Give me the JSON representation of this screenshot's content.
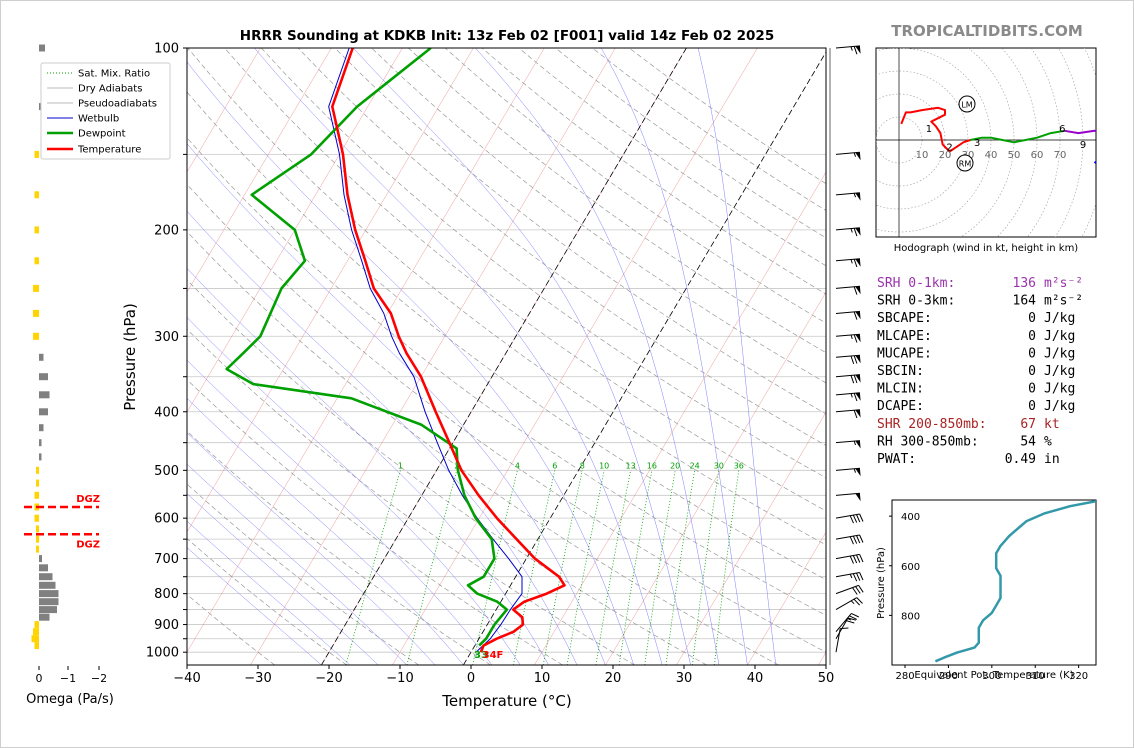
{
  "watermark": "TROPICALTIDBITS.COM",
  "chart_data": [
    {
      "type": "line",
      "subtype": "skew-t sounding",
      "title": "HRRR Sounding at KDKB Init: 13z Feb 02 [F001] valid 14z Feb 02 2025",
      "xlabel": "Temperature (°C)",
      "ylabel": "Pressure (hPa)",
      "xlim": [
        -40,
        50
      ],
      "ylim": [
        1050,
        100
      ],
      "y_scale": "log",
      "x_ticks": [
        "−40",
        "−30",
        "−20",
        "−10",
        "0",
        "10",
        "20",
        "30",
        "40",
        "50"
      ],
      "y_ticks": [
        "100",
        "200",
        "300",
        "400",
        "500",
        "600",
        "700",
        "800",
        "900",
        "1000"
      ],
      "legend_position": "top-left",
      "legend": [
        "Sat. Mix. Ratio",
        "Dry Adiabats",
        "Pseudoadiabats",
        "Wetbulb",
        "Dewpoint",
        "Temperature"
      ],
      "mixing_ratio_labels": [
        "1",
        "2",
        "4",
        "6",
        "8",
        "10",
        "13",
        "16",
        "20",
        "24",
        "30",
        "36"
      ],
      "surface_labels": {
        "dewpoint": "33",
        "temperature": "34F"
      },
      "series": [
        {
          "name": "Temperature",
          "color": "#ff0000",
          "points": [
            [
              1000,
              1.4
            ],
            [
              975,
              1.2
            ],
            [
              950,
              2.5
            ],
            [
              925,
              4.3
            ],
            [
              900,
              5.0
            ],
            [
              875,
              4.3
            ],
            [
              850,
              2.4
            ],
            [
              825,
              3.3
            ],
            [
              800,
              5.8
            ],
            [
              775,
              7.6
            ],
            [
              750,
              6.1
            ],
            [
              700,
              1.2
            ],
            [
              650,
              -3.0
            ],
            [
              600,
              -7.5
            ],
            [
              550,
              -12.0
            ],
            [
              500,
              -16.5
            ],
            [
              450,
              -20.5
            ],
            [
              400,
              -25.0
            ],
            [
              350,
              -30.0
            ],
            [
              320,
              -34.0
            ],
            [
              300,
              -36.5
            ],
            [
              275,
              -39.5
            ],
            [
              250,
              -44.0
            ],
            [
              225,
              -47.5
            ],
            [
              200,
              -51.5
            ],
            [
              175,
              -55.5
            ],
            [
              150,
              -59.5
            ],
            [
              125,
              -65.0
            ],
            [
              100,
              -67.0
            ]
          ]
        },
        {
          "name": "Wetbulb",
          "color": "#0000cc",
          "points": [
            [
              1000,
              0.7
            ],
            [
              950,
              1.6
            ],
            [
              900,
              1.9
            ],
            [
              850,
              2.0
            ],
            [
              800,
              2.3
            ],
            [
              750,
              0.9
            ],
            [
              700,
              -2.5
            ],
            [
              650,
              -6.3
            ],
            [
              600,
              -10.3
            ],
            [
              550,
              -14.3
            ],
            [
              500,
              -18.3
            ],
            [
              450,
              -22.2
            ],
            [
              400,
              -26.5
            ],
            [
              350,
              -31.0
            ],
            [
              320,
              -35.0
            ],
            [
              300,
              -37.5
            ],
            [
              275,
              -40.5
            ],
            [
              250,
              -44.5
            ],
            [
              225,
              -48.0
            ],
            [
              200,
              -52.0
            ],
            [
              175,
              -56.0
            ],
            [
              150,
              -60.0
            ],
            [
              125,
              -65.5
            ],
            [
              100,
              -67.5
            ]
          ]
        },
        {
          "name": "Dewpoint",
          "color": "#00a000",
          "points": [
            [
              975,
              0.6
            ],
            [
              950,
              1.0
            ],
            [
              900,
              1.0
            ],
            [
              850,
              1.5
            ],
            [
              825,
              -0.5
            ],
            [
              800,
              -4.0
            ],
            [
              775,
              -6.0
            ],
            [
              750,
              -4.5
            ],
            [
              700,
              -4.5
            ],
            [
              650,
              -6.5
            ],
            [
              600,
              -10.5
            ],
            [
              550,
              -14.0
            ],
            [
              500,
              -17.0
            ],
            [
              460,
              -19.0
            ],
            [
              420,
              -26.0
            ],
            [
              380,
              -38.0
            ],
            [
              360,
              -53.0
            ],
            [
              340,
              -58.0
            ],
            [
              320,
              -57.0
            ],
            [
              300,
              -56.0
            ],
            [
              250,
              -57.0
            ],
            [
              225,
              -56.0
            ],
            [
              200,
              -60.0
            ],
            [
              175,
              -69.0
            ],
            [
              150,
              -64.0
            ],
            [
              125,
              -61.5
            ],
            [
              100,
              -56.0
            ]
          ]
        }
      ]
    },
    {
      "type": "bar",
      "title": "",
      "xlabel": "Omega (Pa/s)",
      "x_ticks": [
        "0",
        "−1",
        "−2"
      ],
      "dgz_labels": [
        "DGZ",
        "DGZ"
      ],
      "dgz_pressures": [
        575,
        638
      ],
      "series": [
        {
          "name": "",
          "color": "#ffd400",
          "pressures": [
            150,
            175,
            200,
            225,
            250,
            275,
            300,
            500,
            525,
            550,
            575,
            600,
            625,
            650,
            675,
            900,
            925,
            950,
            975
          ],
          "values": [
            0.15,
            0.15,
            0.15,
            0.15,
            0.2,
            0.2,
            0.2,
            0.1,
            0.1,
            0.15,
            0.15,
            0.15,
            0.1,
            0.1,
            0.1,
            0.15,
            0.2,
            0.25,
            0.15
          ]
        },
        {
          "name": "",
          "color": "#808080",
          "pressures": [
            100,
            125,
            325,
            350,
            375,
            400,
            425,
            450,
            475,
            700,
            725,
            750,
            775,
            800,
            825,
            850,
            875
          ],
          "values": [
            -0.2,
            -0.1,
            -0.15,
            -0.3,
            -0.35,
            -0.3,
            -0.15,
            -0.05,
            -0.05,
            -0.1,
            -0.3,
            -0.45,
            -0.55,
            -0.65,
            -0.65,
            -0.6,
            -0.35
          ]
        }
      ]
    },
    {
      "type": "line",
      "title": "Hodograph (wind in kt, height in km)",
      "ring_labels": [
        "10",
        "20",
        "30",
        "40",
        "50",
        "60",
        "70"
      ],
      "height_labels": [
        "1",
        "2",
        "3",
        "6",
        "9"
      ],
      "markers": [
        "LM",
        "RM"
      ],
      "series": [
        {
          "name": "",
          "color": "#ff0000",
          "u": [
            1,
            3,
            5,
            10,
            17,
            20,
            20,
            16,
            14,
            16,
            18,
            19,
            22,
            25,
            28,
            31
          ],
          "v": [
            7,
            12,
            12,
            13,
            14,
            13,
            11,
            9,
            8,
            6,
            3,
            -2,
            -5,
            -3,
            -1,
            0
          ]
        },
        {
          "name": "",
          "color": "#00a000",
          "u": [
            31,
            36,
            40,
            45,
            50,
            55,
            60,
            66,
            72
          ],
          "v": [
            0,
            1,
            1,
            0,
            -1,
            0,
            1,
            3,
            4
          ]
        },
        {
          "name": "",
          "color": "#9900cc",
          "u": [
            72,
            78,
            85,
            90
          ],
          "v": [
            4,
            3,
            4,
            3
          ]
        },
        {
          "name": "",
          "color": "#0000ff",
          "u": [
            85,
            91,
            87,
            90
          ],
          "v": [
            -10,
            -5,
            -8,
            -6
          ]
        }
      ]
    },
    {
      "type": "line",
      "xlabel": "Equivalent Pot. Temperature (K)",
      "ylabel": "Pressure (hPa)",
      "x_ticks": [
        "280",
        "290",
        "300",
        "310",
        "320"
      ],
      "y_ticks": [
        "400",
        "600",
        "800"
      ],
      "xlim": [
        277,
        324
      ],
      "ylim": [
        1000,
        335
      ],
      "series": [
        {
          "name": "",
          "color": "#3399aa",
          "pressures": [
            985,
            970,
            950,
            930,
            910,
            890,
            870,
            850,
            820,
            790,
            760,
            730,
            700,
            670,
            640,
            610,
            580,
            550,
            520,
            500,
            480,
            450,
            420,
            390,
            360,
            340
          ],
          "theta_e": [
            287,
            289,
            292,
            296,
            297,
            297,
            297,
            297,
            298,
            300,
            301,
            302,
            302,
            302,
            302,
            301,
            301,
            301,
            302,
            303,
            304,
            306,
            308,
            312,
            318,
            324
          ]
        }
      ]
    }
  ],
  "indices": {
    "rows": [
      {
        "label": "SRH 0-1km:",
        "value": "136",
        "unit": "m²s⁻²",
        "color": "#9933aa"
      },
      {
        "label": "SRH 0-3km:",
        "value": "164",
        "unit": "m²s⁻²",
        "color": "#000000"
      },
      {
        "label": "SBCAPE:",
        "value": "0",
        "unit": "J/kg",
        "color": "#000000"
      },
      {
        "label": "MLCAPE:",
        "value": "0",
        "unit": "J/kg",
        "color": "#000000"
      },
      {
        "label": "MUCAPE:",
        "value": "0",
        "unit": "J/kg",
        "color": "#000000"
      },
      {
        "label": "SBCIN:",
        "value": "0",
        "unit": "J/kg",
        "color": "#000000"
      },
      {
        "label": "MLCIN:",
        "value": "0",
        "unit": "J/kg",
        "color": "#000000"
      },
      {
        "label": "DCAPE:",
        "value": "0",
        "unit": "J/kg",
        "color": "#000000"
      },
      {
        "label": "SHR 200-850mb:",
        "value": "67",
        "unit": "kt",
        "color": "#aa2222"
      },
      {
        "label": "RH 300-850mb:",
        "value": "54",
        "unit": "%",
        "color": "#000000"
      },
      {
        "label": "PWAT:",
        "value": "0.49",
        "unit": "in",
        "color": "#000000"
      }
    ]
  },
  "wind_barbs": [
    {
      "p": 100,
      "dir": 265,
      "kt": 65
    },
    {
      "p": 150,
      "dir": 265,
      "kt": 55
    },
    {
      "p": 175,
      "dir": 265,
      "kt": 55
    },
    {
      "p": 200,
      "dir": 265,
      "kt": 65
    },
    {
      "p": 225,
      "dir": 265,
      "kt": 65
    },
    {
      "p": 250,
      "dir": 265,
      "kt": 60
    },
    {
      "p": 275,
      "dir": 265,
      "kt": 60
    },
    {
      "p": 300,
      "dir": 265,
      "kt": 65
    },
    {
      "p": 325,
      "dir": 265,
      "kt": 70
    },
    {
      "p": 350,
      "dir": 265,
      "kt": 70
    },
    {
      "p": 375,
      "dir": 265,
      "kt": 65
    },
    {
      "p": 400,
      "dir": 265,
      "kt": 60
    },
    {
      "p": 450,
      "dir": 265,
      "kt": 55
    },
    {
      "p": 500,
      "dir": 265,
      "kt": 55
    },
    {
      "p": 550,
      "dir": 265,
      "kt": 50
    },
    {
      "p": 600,
      "dir": 260,
      "kt": 40
    },
    {
      "p": 650,
      "dir": 260,
      "kt": 40
    },
    {
      "p": 700,
      "dir": 260,
      "kt": 40
    },
    {
      "p": 750,
      "dir": 260,
      "kt": 35
    },
    {
      "p": 800,
      "dir": 250,
      "kt": 30
    },
    {
      "p": 850,
      "dir": 240,
      "kt": 25
    },
    {
      "p": 925,
      "dir": 220,
      "kt": 25
    },
    {
      "p": 950,
      "dir": 210,
      "kt": 20
    },
    {
      "p": 1000,
      "dir": 190,
      "kt": 10
    }
  ]
}
